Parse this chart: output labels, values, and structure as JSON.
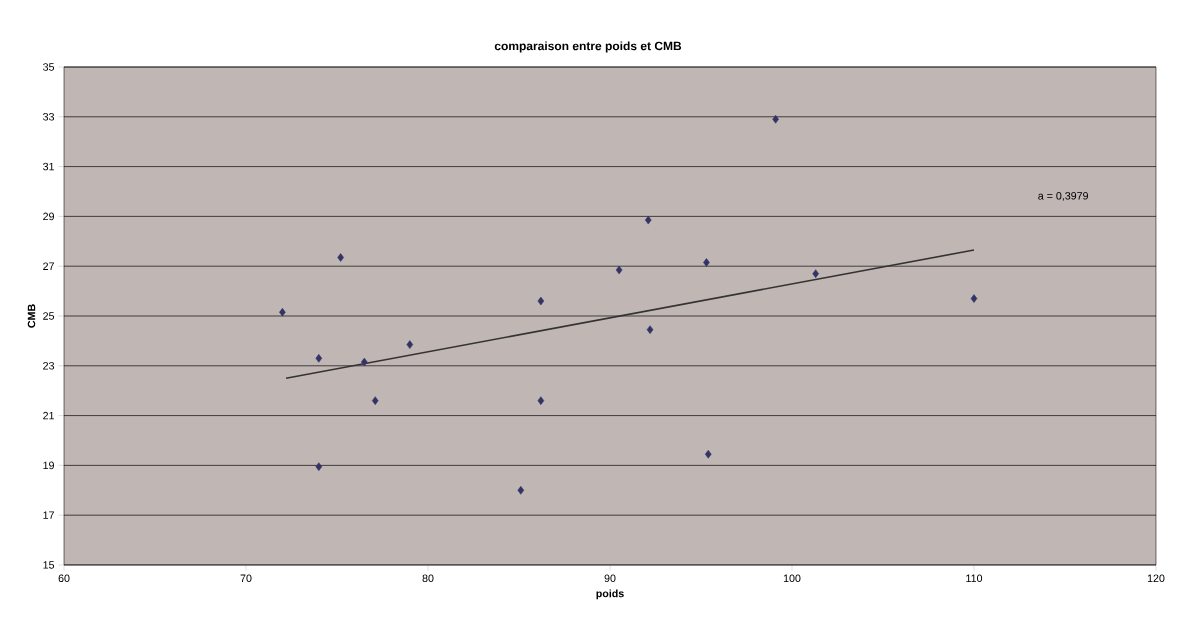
{
  "chart_data": {
    "type": "scatter",
    "title": "comparaison entre poids et CMB",
    "xlabel": "poids",
    "ylabel": "CMB",
    "series": [
      {
        "color": "#333366",
        "marker": "diamond",
        "x": [
          72,
          74,
          74,
          75.2,
          76.5,
          77.1,
          79,
          85.1,
          86.2,
          86.2,
          90.5,
          92.1,
          92.2,
          95.3,
          95.4,
          99.1,
          101.3,
          110
        ],
        "values": [
          25.15,
          23.3,
          18.95,
          27.35,
          23.15,
          21.6,
          23.85,
          18.0,
          25.6,
          21.6,
          26.85,
          28.85,
          24.45,
          27.15,
          19.45,
          32.9,
          26.7,
          25.7
        ]
      },
      {
        "type": "line",
        "color": "#333333",
        "marker": "none",
        "x": [
          72.2,
          110
        ],
        "values": [
          22.5,
          27.65
        ]
      }
    ],
    "annotations": [
      "a = 0,3979"
    ],
    "xlim": [
      60,
      120
    ],
    "xticks": [
      60,
      70,
      80,
      90,
      100,
      110,
      120
    ],
    "ylim": [
      15,
      35
    ],
    "yticks": [
      15,
      17,
      19,
      21,
      23,
      25,
      27,
      29,
      31,
      33,
      35
    ],
    "grid": "y"
  }
}
